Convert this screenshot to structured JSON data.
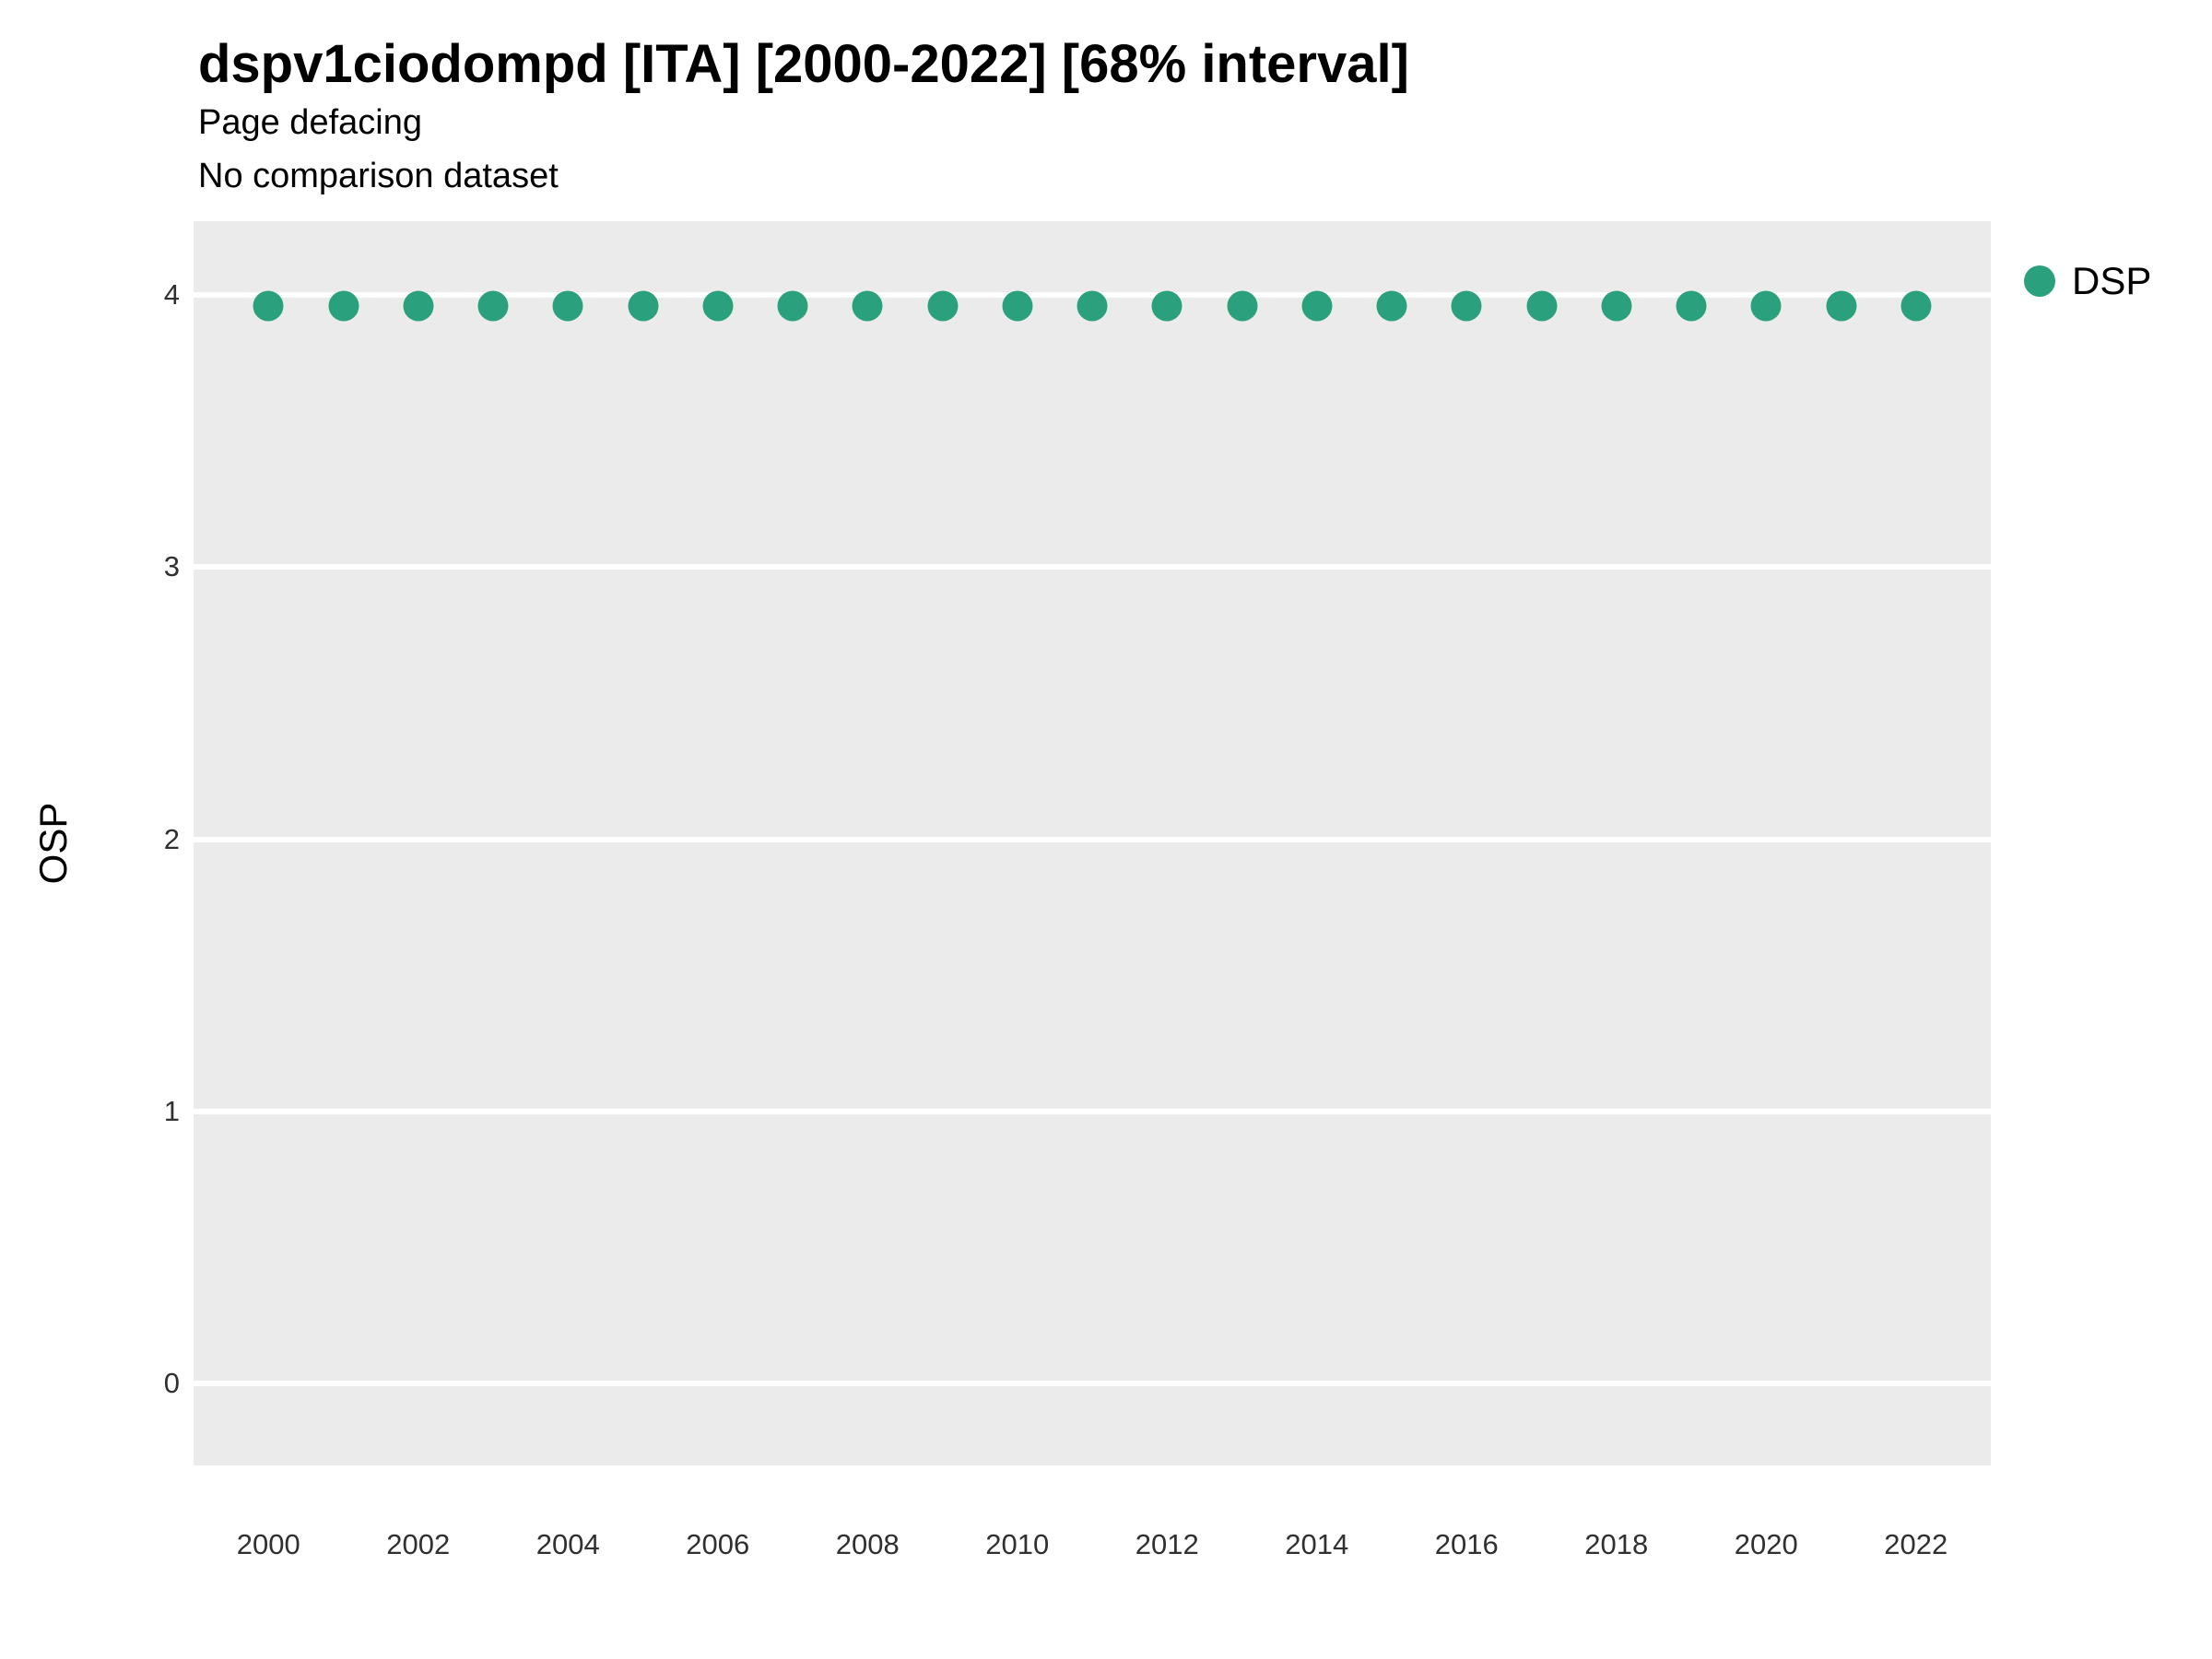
{
  "chart_data": {
    "type": "scatter",
    "title": "dspv1ciodompd [ITA] [2000-2022] [68% interval]",
    "subtitle": "Page defacing",
    "note": "No comparison dataset",
    "xlabel": "",
    "ylabel": "OSP",
    "x": [
      2000,
      2001,
      2002,
      2003,
      2004,
      2005,
      2006,
      2007,
      2008,
      2009,
      2010,
      2011,
      2012,
      2013,
      2014,
      2015,
      2016,
      2017,
      2018,
      2019,
      2020,
      2021,
      2022
    ],
    "series": [
      {
        "name": "DSP",
        "color": "#2aa17c",
        "values": [
          3.96,
          3.96,
          3.96,
          3.96,
          3.96,
          3.96,
          3.96,
          3.96,
          3.96,
          3.96,
          3.96,
          3.96,
          3.96,
          3.96,
          3.96,
          3.96,
          3.96,
          3.96,
          3.96,
          3.96,
          3.96,
          3.96,
          3.96
        ]
      }
    ],
    "xlim": [
      1999,
      2023
    ],
    "ylim": [
      -0.3,
      4.27
    ],
    "xticks": [
      2000,
      2002,
      2004,
      2006,
      2008,
      2010,
      2012,
      2014,
      2016,
      2018,
      2020,
      2022
    ],
    "yticks": [
      0,
      1,
      2,
      3,
      4
    ],
    "grid": "horizontal-major-only",
    "grid_color": "#ffffff",
    "panel_background": "#ebebeb",
    "legend_position": "right-top"
  }
}
